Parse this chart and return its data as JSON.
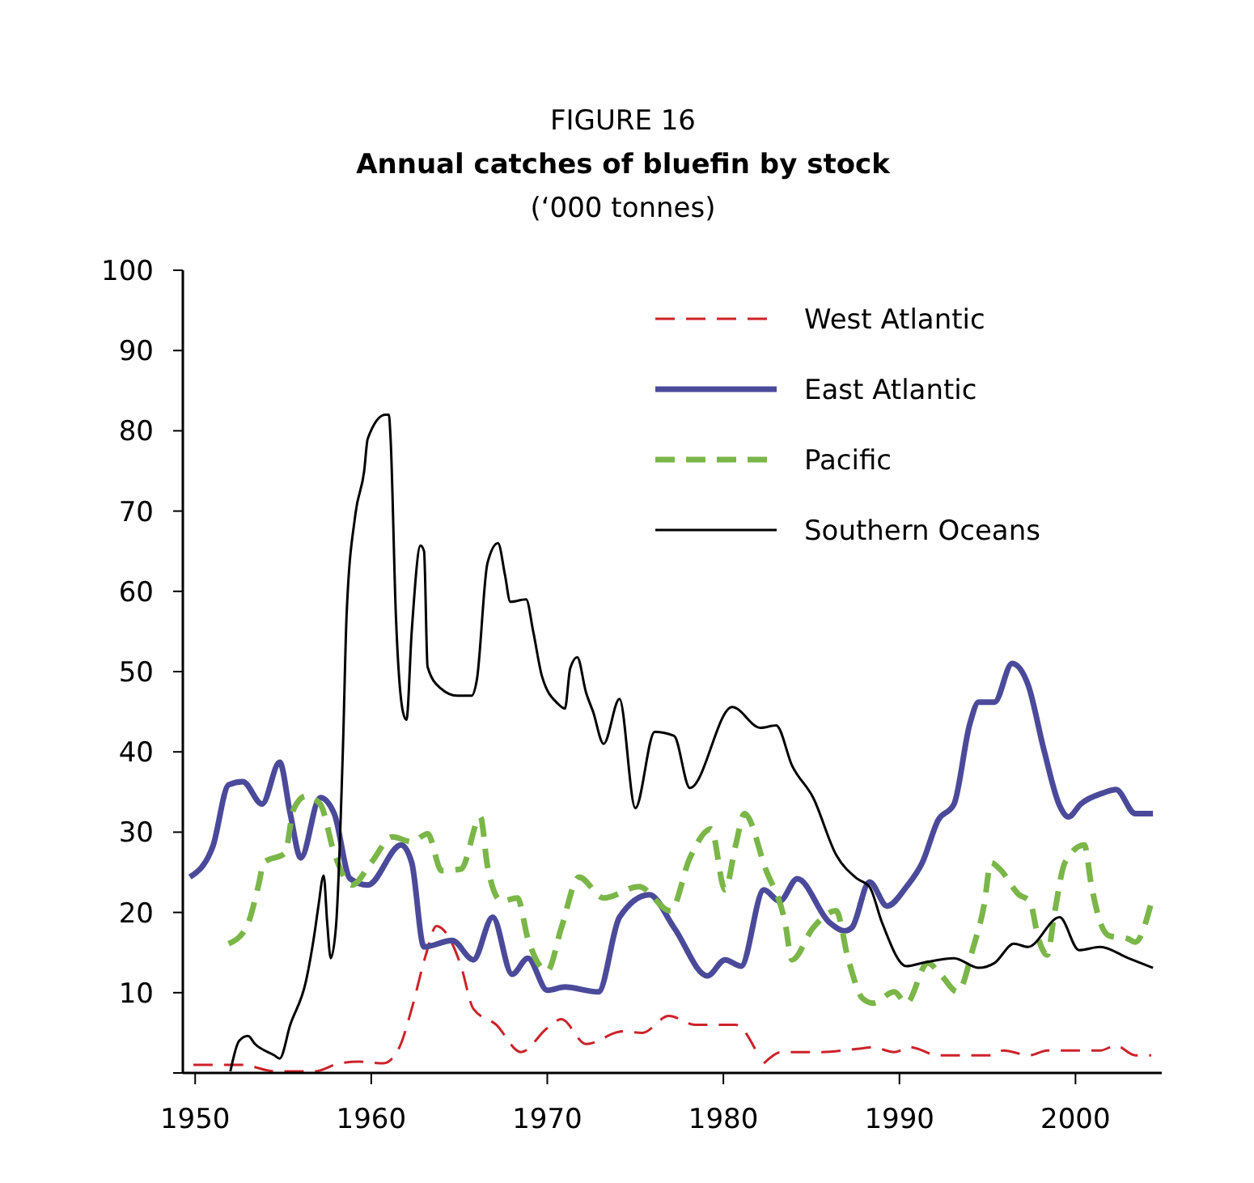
{
  "chart_data": {
    "type": "line",
    "title": "Annual catches of bluefin by stock",
    "subtitle": "(‘000 tonnes)",
    "annotations": [
      "FIGURE 16"
    ],
    "xlim": [
      1949.3,
      2004.9
    ],
    "xticks": [
      1950,
      1960,
      1970,
      1980,
      1990,
      2000
    ],
    "ylim": [
      0,
      100
    ],
    "yticks": [
      {
        "value": 0,
        "label": null
      },
      10,
      20,
      30,
      40,
      50,
      60,
      70,
      80,
      90,
      100
    ],
    "grid": false,
    "legend": "top right",
    "marker": "none",
    "series": [
      {
        "name": "West Atlantic",
        "color": "#cc2229",
        "line_style": "dashed",
        "x": [
          1949.9,
          1951.3,
          1952.7,
          1954.5,
          1956.8,
          1958.2,
          1959.3,
          1960.7,
          1961.6,
          1962.3,
          1963.1,
          1963.7,
          1964.3,
          1965.1,
          1965.8,
          1967.1,
          1968.5,
          1970,
          1970.8,
          1972.2,
          1974.3,
          1975.4,
          1976.9,
          1978.4,
          1979.3,
          1980.7,
          1981.8,
          1982.1,
          1982.3,
          1983.3,
          1985.5,
          1987.6,
          1988.5,
          1989.7,
          1990.6,
          1992.2,
          1995.2,
          1995.9,
          1997.4,
          1998.4,
          2001.4,
          2002.3,
          2003.4,
          2004.3
        ],
        "values": [
          1,
          1,
          1,
          0.2,
          0.2,
          1.2,
          1.4,
          1.2,
          3.2,
          8,
          14.7,
          18.3,
          17.3,
          13.3,
          8,
          6,
          2.6,
          5.6,
          6.7,
          3.6,
          5.2,
          5,
          7.1,
          6,
          6,
          6,
          3,
          null,
          1.2,
          2.6,
          2.6,
          3,
          3.2,
          2.6,
          3.2,
          2.2,
          2.2,
          2.8,
          2.2,
          2.8,
          2.8,
          3.4,
          2.2,
          2.2
        ]
      },
      {
        "name": "East Atlantic",
        "color": "#4b4a9a",
        "line_style": "solid",
        "x": [
          1949.7,
          1951,
          1951.9,
          1952.7,
          1953.8,
          1954.8,
          1955.4,
          1956,
          1957.1,
          1957.9,
          1958.8,
          1959.8,
          1961.7,
          1962.3,
          1963,
          1964.6,
          1965.8,
          1966.9,
          1968,
          1968.9,
          1970,
          1971,
          1972.9,
          1974.1,
          1975.8,
          1977.2,
          1979.1,
          1980.1,
          1981,
          1982.3,
          1983.2,
          1984.2,
          1986,
          1986.9,
          1987.3,
          1988.3,
          1989.3,
          1990.4,
          1991.3,
          1992.2,
          1993.1,
          1994,
          1994.5,
          1995.4,
          1996.4,
          1997.3,
          1998.2,
          1999.1,
          1999.6,
          2000.3,
          2001.6,
          2002.3,
          2003.4,
          2004.4
        ],
        "values": [
          24.4,
          28.2,
          35.9,
          36.3,
          33.5,
          38.7,
          32.3,
          26.8,
          34.3,
          32.3,
          24.2,
          23.4,
          28.4,
          26.2,
          15.7,
          16.5,
          14.1,
          19.4,
          12.3,
          14.3,
          10.3,
          10.7,
          10.1,
          19.4,
          22.2,
          18.1,
          12.1,
          14.1,
          13.3,
          22.8,
          21.4,
          24.2,
          18.8,
          17.7,
          18.1,
          23.8,
          20.8,
          23.2,
          26.2,
          31.5,
          33.5,
          43.5,
          46.2,
          46.2,
          51,
          48.4,
          40.3,
          33.3,
          31.9,
          33.5,
          34.9,
          35.3,
          32.3,
          32.3
        ]
      },
      {
        "name": "Pacific",
        "color": "#7ab648",
        "line_style": "dashed",
        "x": [
          1951.9,
          1952.9,
          1953.6,
          1953.9,
          1955.1,
          1955.6,
          1956.3,
          1957.1,
          1957.9,
          1958.9,
          1960,
          1961.2,
          1962.3,
          1963.2,
          1964,
          1965.1,
          1966.2,
          1966.6,
          1967.4,
          1968.3,
          1968.9,
          1970,
          1970.8,
          1971.8,
          1973.2,
          1975.2,
          1977,
          1978.1,
          1979.3,
          1980.1,
          1980.7,
          1981.2,
          1982.4,
          1983.5,
          1983.9,
          1985.1,
          1986.4,
          1987.1,
          1987.9,
          1988.5,
          1989.7,
          1990.4,
          1991.6,
          1992.4,
          1993.3,
          1994.2,
          1994.8,
          1995.2,
          1995.7,
          1996.8,
          1997.4,
          1997.9,
          1998.4,
          1998.8,
          1999.4,
          2000.5,
          2000.9,
          2001.4,
          2001.9,
          2003,
          2003.4,
          2004.3
        ],
        "values": [
          16.1,
          18.1,
          23.4,
          26.2,
          27.4,
          32.9,
          34.5,
          33.5,
          27.4,
          23.4,
          26.2,
          29.4,
          28.8,
          29.8,
          25.2,
          25.4,
          31.9,
          25.8,
          21.4,
          21.8,
          16.7,
          12.7,
          18.1,
          24.4,
          21.8,
          23.2,
          20.2,
          26.8,
          30.4,
          22.8,
          28.4,
          32.3,
          25.4,
          18.8,
          14.1,
          18.1,
          20.2,
          14.1,
          9.3,
          8.7,
          10.1,
          8.7,
          13.7,
          12.1,
          10.1,
          15.7,
          20.8,
          26.2,
          25.4,
          22.2,
          21.4,
          16.7,
          14.7,
          19.8,
          26.2,
          28.4,
          23.4,
          18.8,
          17.1,
          16.7,
          16.3,
          21.2
        ]
      },
      {
        "name": "Southern Oceans",
        "color": "#000000",
        "line_style": "solid",
        "x": [
          1952,
          1952.5,
          1953,
          1953.4,
          1954.5,
          1954.8,
          1955.4,
          1956.3,
          1956.8,
          1957,
          1957.3,
          1957.5,
          1957.7,
          1958,
          1958.4,
          1958.6,
          1959.1,
          1959.6,
          1959.8,
          1960.8,
          1961,
          1961.1,
          1961.4,
          1961.8,
          1962,
          1962.3,
          1962.8,
          1963,
          1963.2,
          1963.9,
          1964.9,
          1965.7,
          1966,
          1966.6,
          1967.2,
          1967.6,
          1967.9,
          1968.8,
          1969.2,
          1969.7,
          1970.6,
          1971,
          1971.3,
          1971.7,
          1972.2,
          1972.6,
          1973.2,
          1974.1,
          1975,
          1976.1,
          1977.2,
          1978.1,
          1980.5,
          1982.1,
          1983,
          1983.9,
          1985.1,
          1986.4,
          1987.6,
          1988.3,
          1989,
          1990.4,
          1991.3,
          1993.1,
          1994.5,
          1995.4,
          1996.5,
          1997.3,
          1999.1,
          2000.2,
          2001.4,
          2003,
          2004.4
        ],
        "values": [
          0.2,
          4,
          4.6,
          3.6,
          2.2,
          1.8,
          6,
          11.5,
          17.7,
          20.8,
          24.6,
          18.7,
          14.3,
          18.3,
          41,
          57,
          69.6,
          75,
          79,
          82,
          82,
          79,
          57,
          45,
          44,
          55,
          65.7,
          65,
          50.6,
          48,
          47,
          47,
          49,
          63.5,
          66,
          62,
          58.7,
          59,
          55,
          49.4,
          46,
          45.4,
          50.4,
          51.8,
          47.4,
          45,
          41,
          46.6,
          33,
          42.5,
          42,
          35.5,
          45.6,
          43,
          43.3,
          38.3,
          34.3,
          27.2,
          24.2,
          23.2,
          18.8,
          13.3,
          13.7,
          14.3,
          13.1,
          13.7,
          16.1,
          15.7,
          19.4,
          15.3,
          15.7,
          14.3,
          13.1
        ]
      }
    ]
  }
}
